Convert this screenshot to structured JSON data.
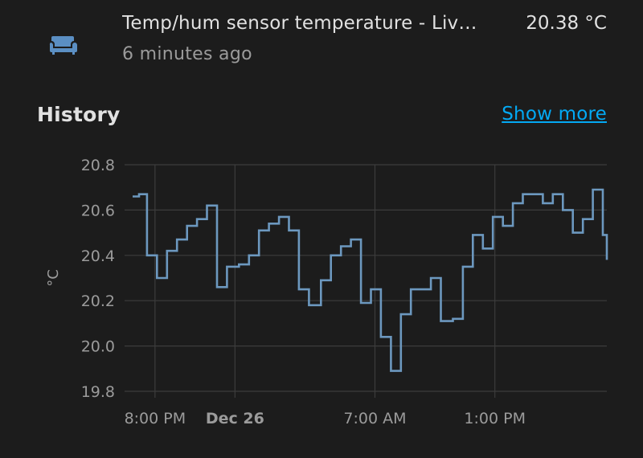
{
  "entity": {
    "icon": "sofa-icon",
    "name": "Temp/hum sensor temperature - Liv…",
    "last_changed": "6 minutes ago",
    "state": "20.38 °C"
  },
  "history": {
    "title": "History",
    "show_more_label": "Show more"
  },
  "colors": {
    "background": "#1c1c1c",
    "line": "#6c98bf",
    "grid": "#3c3c3c",
    "link": "#03a9f4",
    "icon": "#5b8fc3"
  },
  "chart_data": {
    "type": "line",
    "step": true,
    "ylabel": "°C",
    "ylim": [
      19.8,
      20.8
    ],
    "yticks": [
      "20.8",
      "20.6",
      "20.4",
      "20.2",
      "20.0",
      "19.8"
    ],
    "xlim_hours": [
      -1.12,
      22.6
    ],
    "xticks": [
      {
        "hour": 0,
        "label": "8:00 PM",
        "bold": false
      },
      {
        "hour": 4,
        "label": "Dec 26",
        "bold": true
      },
      {
        "hour": 11,
        "label": "7:00 AM",
        "bold": false
      },
      {
        "hour": 17,
        "label": "1:00 PM",
        "bold": false
      }
    ],
    "series": [
      {
        "x": [
          -1.12,
          -0.8,
          -0.4,
          0.1,
          0.6,
          1.1,
          1.6,
          2.1,
          2.6,
          3.1,
          3.6,
          4.2,
          4.7,
          5.2,
          5.7,
          6.2,
          6.7,
          7.2,
          7.7,
          8.3,
          8.8,
          9.3,
          9.8,
          10.3,
          10.8,
          11.3,
          11.8,
          12.3,
          12.8,
          13.3,
          13.8,
          14.3,
          14.9,
          15.4,
          15.9,
          16.4,
          16.9,
          17.4,
          17.9,
          18.4,
          18.9,
          19.4,
          19.9,
          20.4,
          20.9,
          21.4,
          21.9,
          22.4,
          22.6
        ],
        "y": [
          20.66,
          20.67,
          20.4,
          20.3,
          20.42,
          20.47,
          20.53,
          20.56,
          20.62,
          20.26,
          20.35,
          20.36,
          20.4,
          20.51,
          20.54,
          20.57,
          20.51,
          20.25,
          20.18,
          20.29,
          20.4,
          20.44,
          20.47,
          20.19,
          20.25,
          20.04,
          19.89,
          20.14,
          20.25,
          20.25,
          20.3,
          20.11,
          20.12,
          20.35,
          20.49,
          20.43,
          20.57,
          20.53,
          20.63,
          20.67,
          20.67,
          20.63,
          20.67,
          20.6,
          20.5,
          20.56,
          20.69,
          20.49,
          20.38
        ]
      }
    ]
  }
}
